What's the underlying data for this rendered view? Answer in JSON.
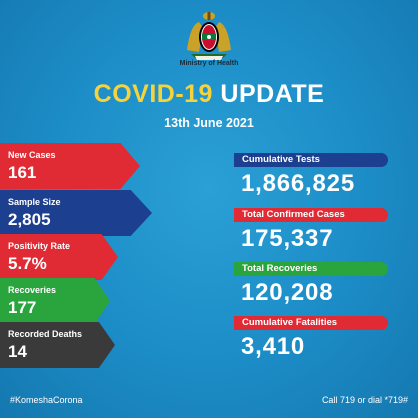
{
  "header": {
    "ministry": "Ministry of Health",
    "headline_covid": "COVID-19",
    "headline_update": "UPDATE",
    "date": "13th June 2021"
  },
  "ribbons": [
    {
      "label": "New Cases",
      "value": "161",
      "color": "#e02a34"
    },
    {
      "label": "Sample Size",
      "value": "2,805",
      "color": "#1d3f8f"
    },
    {
      "label": "Positivity Rate",
      "value": "5.7%",
      "color": "#e02a34"
    },
    {
      "label": "Recoveries",
      "value": "177",
      "color": "#2aa43c"
    },
    {
      "label": "Recorded Deaths",
      "value": "14",
      "color": "#3a3a3a"
    }
  ],
  "cards": [
    {
      "label": "Cumulative Tests",
      "value": "1,866,825",
      "color": "#1d3f8f"
    },
    {
      "label": "Total Confirmed Cases",
      "value": "175,337",
      "color": "#e02a34"
    },
    {
      "label": "Total Recoveries",
      "value": "120,208",
      "color": "#2aa43c"
    },
    {
      "label": "Cumulative Fatalities",
      "value": "3,410",
      "color": "#e02a34"
    }
  ],
  "footer": {
    "hashtag": "#KomeshaCorona",
    "hotline": "Call 719 or dial *719#"
  },
  "icons": {
    "crest": "kenya-coat-of-arms-icon"
  }
}
